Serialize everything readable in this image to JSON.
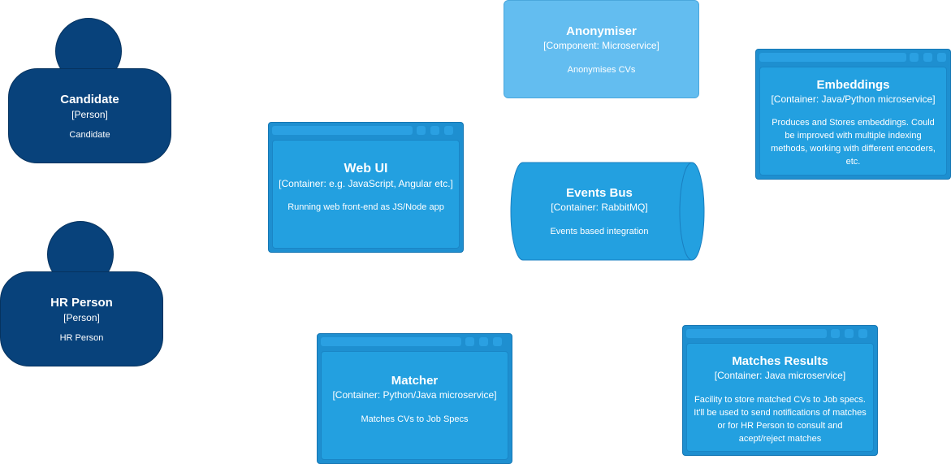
{
  "nodes": {
    "candidate": {
      "title": "Candidate",
      "tech": "[Person]",
      "desc": "Candidate"
    },
    "hr_person": {
      "title": "HR Person",
      "tech": "[Person]",
      "desc": "HR Person"
    },
    "web_ui": {
      "title": "Web UI",
      "tech": "[Container: e.g. JavaScript, Angular etc.]",
      "desc": "Running web front-end as JS/Node app"
    },
    "anonymiser": {
      "title": "Anonymiser",
      "tech": "[Component: Microservice]",
      "desc": "Anonymises CVs"
    },
    "events_bus": {
      "title": "Events Bus",
      "tech": "[Container: RabbitMQ]",
      "desc": "Events based integration"
    },
    "embeddings": {
      "title": "Embeddings",
      "tech": "[Container: Java/Python microservice]",
      "desc": "Produces and Stores embeddings. Could be improved with multiple indexing methods, working with different encoders, etc."
    },
    "matcher": {
      "title": "Matcher",
      "tech": "[Container: Python/Java microservice]",
      "desc": "Matches CVs to Job Specs"
    },
    "matches_results": {
      "title": "Matches Results",
      "tech": "[Container: Java microservice]",
      "desc": "Facility to store matched CVs to Job specs. It'll be used to send notifications of matches or for HR Person to consult and acept/reject matches"
    }
  },
  "colors": {
    "person": "#08427b",
    "container": "#1e8fd0",
    "container_inner": "#23a0e0",
    "component": "#63bdf0",
    "text": "#ffffff"
  }
}
